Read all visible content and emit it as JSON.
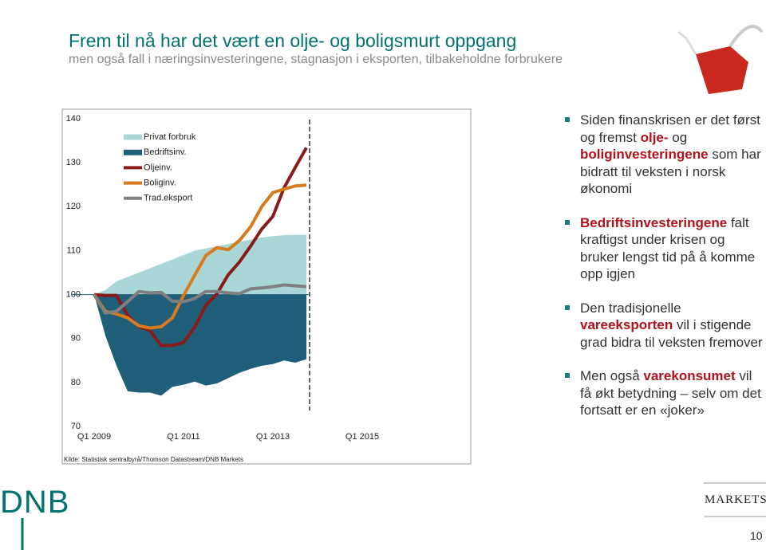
{
  "header": {
    "title": "Frem til nå har det vært en olje- og boligsmurt oppgang",
    "subtitle": "men også fall i næringsinvesteringene, stagnasjon i eksporten, tilbakeholdne forbrukere"
  },
  "chart_data": {
    "type": "line",
    "categories": [
      "Q1 2009",
      null,
      null,
      null,
      null,
      null,
      null,
      null,
      "Q1 2011",
      null,
      null,
      null,
      null,
      null,
      null,
      null,
      "Q1 2013",
      null,
      null,
      null,
      null,
      null,
      null,
      null,
      "Q1 2015"
    ],
    "ylim": [
      70,
      140
    ],
    "yticks": [
      70,
      80,
      90,
      100,
      110,
      120,
      130,
      140
    ],
    "baseline": 100,
    "series": [
      {
        "name": "Privat forbruk",
        "type": "area",
        "color": "#a9d6d6",
        "values": [
          100,
          101,
          103,
          104,
          105,
          106,
          107,
          108,
          109,
          110,
          110.5,
          111,
          111.5,
          112,
          112.5,
          113,
          113.3,
          113.5,
          113.6,
          113.6,
          null,
          null,
          null,
          null,
          null
        ]
      },
      {
        "name": "Bedriftsinv.",
        "type": "area",
        "color": "#1f5f7a",
        "values": [
          100,
          90.7,
          83.8,
          78,
          77.7,
          77.7,
          77,
          79,
          79.5,
          80.2,
          79.3,
          79.8,
          81,
          82.2,
          83.1,
          83.8,
          84.2,
          85,
          84.5,
          85.3,
          null,
          null,
          null,
          null,
          null
        ]
      },
      {
        "name": "Oljeinv.",
        "type": "line",
        "color": "#8b1a1a",
        "values": [
          100,
          99.8,
          99.8,
          95.3,
          92.7,
          91.8,
          88.4,
          88.4,
          89.1,
          92.6,
          97.6,
          100.2,
          104.5,
          107.4,
          111,
          114.9,
          117.8,
          124.3,
          128.9,
          133.4,
          null,
          null,
          null,
          null,
          null
        ]
      },
      {
        "name": "Boliginv.",
        "type": "line",
        "color": "#d97a1c",
        "values": [
          100,
          96.2,
          95.6,
          94.7,
          92.9,
          92.4,
          92.7,
          94.7,
          99.8,
          104.4,
          108.9,
          110.7,
          110.2,
          112.3,
          115.4,
          120,
          123.2,
          124,
          124.7,
          124.9,
          null,
          null,
          null,
          null,
          null
        ]
      },
      {
        "name": "Trad.eksport",
        "type": "line",
        "color": "#7f7f7f",
        "values": [
          100,
          95.8,
          96.2,
          98.4,
          100.7,
          100.4,
          100.5,
          98.5,
          98.4,
          99.1,
          100.7,
          100.7,
          100.4,
          100.2,
          101.3,
          101.5,
          101.8,
          102.2,
          102,
          101.8,
          null,
          null,
          null,
          null,
          null
        ]
      }
    ],
    "source": "Kilde: Statistisk sentralbyrå/Thomson Datastream/DNB Markets"
  },
  "bullets": [
    [
      {
        "text": "Siden finanskrisen er det først og fremst "
      },
      {
        "text": "olje-",
        "strong": true
      },
      {
        "text": " og "
      },
      {
        "text": "boliginvesteringene",
        "strong": true
      },
      {
        "text": " som har bidratt til veksten i norsk økonomi"
      }
    ],
    [
      {
        "text": "Bedriftsinvesteringene",
        "strong": true
      },
      {
        "text": " falt kraftigst under krisen og bruker lengst tid på å komme opp igjen"
      }
    ],
    [
      {
        "text": "Den tradisjonelle "
      },
      {
        "text": "vareeksporten",
        "strong": true
      },
      {
        "text": " vil i stigende grad bidra til veksten fremover"
      }
    ],
    [
      {
        "text": "Men også "
      },
      {
        "text": "varekonsumet",
        "strong": true
      },
      {
        "text": " vil få økt betydning – selv om det fortsatt er en «joker»"
      }
    ]
  ],
  "footer": {
    "logo": "DNB",
    "brand": "MARKETS",
    "page": "10"
  }
}
